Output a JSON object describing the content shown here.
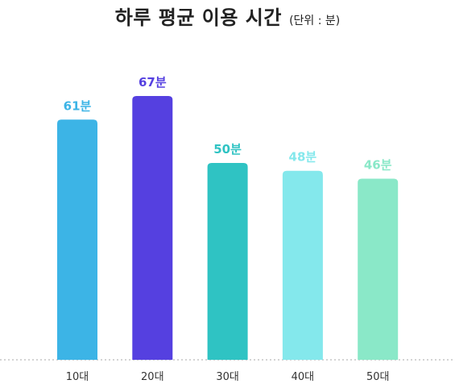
{
  "chart_data": {
    "type": "bar",
    "title": "하루 평균 이용 시간",
    "subtitle": "(단위 : 분)",
    "categories": [
      "10대",
      "20대",
      "30대",
      "40대",
      "50대"
    ],
    "values": [
      61,
      67,
      50,
      48,
      46
    ],
    "value_labels": [
      "61분",
      "67분",
      "50분",
      "48분",
      "46분"
    ],
    "colors": [
      "#3cb4e6",
      "#5540e0",
      "#2fc3c3",
      "#84e8ec",
      "#8ae8c8"
    ],
    "label_colors": [
      "#3cb4e6",
      "#5540e0",
      "#2fc3c3",
      "#84e8ec",
      "#8ae8c8"
    ],
    "ylim": [
      0,
      67
    ],
    "xlabel": "",
    "ylabel": "",
    "grid": false,
    "baseline_style": "dotted"
  }
}
